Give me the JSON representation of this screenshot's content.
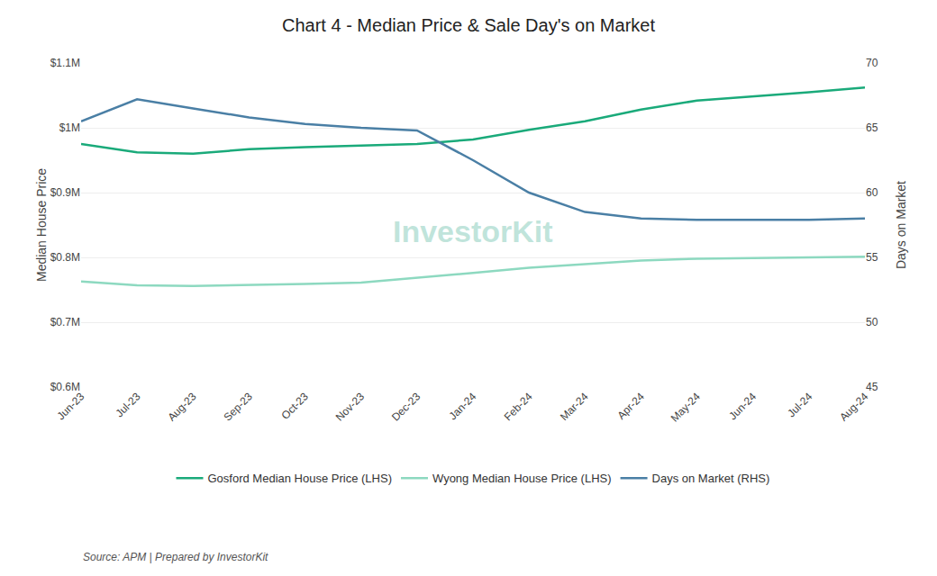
{
  "chart_data": {
    "type": "line",
    "title": "Chart 4 - Median Price & Sale Day's on Market",
    "ylabel": "Median House Price",
    "y2label": "Days on Market",
    "annotations": [
      "Source: APM | Prepared by InvestorKit",
      "InvestorKit"
    ],
    "categories": [
      "Jun-23",
      "Jul-23",
      "Aug-23",
      "Sep-23",
      "Oct-23",
      "Nov-23",
      "Dec-23",
      "Jan-24",
      "Feb-24",
      "Mar-24",
      "Apr-24",
      "May-24",
      "Jun-24",
      "Jul-24",
      "Aug-24"
    ],
    "series": [
      {
        "name": "Gosford Median House Price (LHS)",
        "color": "#1aaa7a",
        "values": [
          975000,
          962000,
          960000,
          967000,
          970000,
          972000,
          975000,
          982000,
          997000,
          1010000,
          1028000,
          1042000,
          1048000,
          1055000,
          1062000
        ]
      },
      {
        "name": "Wyong Median House Price (LHS)",
        "color": "#8dd9c0",
        "values": [
          763000,
          757000,
          756000,
          757000,
          759000,
          761000,
          768000,
          776000,
          784000,
          790000,
          795000,
          798000,
          799000,
          800000,
          801000
        ]
      },
      {
        "name": "Days on Market (RHS)",
        "color": "#4a7fa5",
        "axis": "y2",
        "values": [
          65.5,
          67.2,
          66.5,
          65.8,
          65.3,
          65.0,
          64.8,
          62.5,
          60.0,
          58.5,
          58.0,
          57.9,
          57.9,
          57.9,
          58.0
        ]
      }
    ],
    "ylim": [
      600000,
      1100000
    ],
    "yticks": [
      {
        "value": 600000,
        "label": "$0.6M"
      },
      {
        "value": 700000,
        "label": "$0.7M"
      },
      {
        "value": 800000,
        "label": "$0.8M"
      },
      {
        "value": 900000,
        "label": "$0.9M"
      },
      {
        "value": 1000000,
        "label": "$1M"
      },
      {
        "value": 1100000,
        "label": "$1.1M"
      }
    ],
    "y2lim": [
      45,
      70
    ],
    "y2ticks": [
      45,
      50,
      55,
      60,
      65,
      70
    ],
    "grid": true,
    "legend": "bottom"
  }
}
